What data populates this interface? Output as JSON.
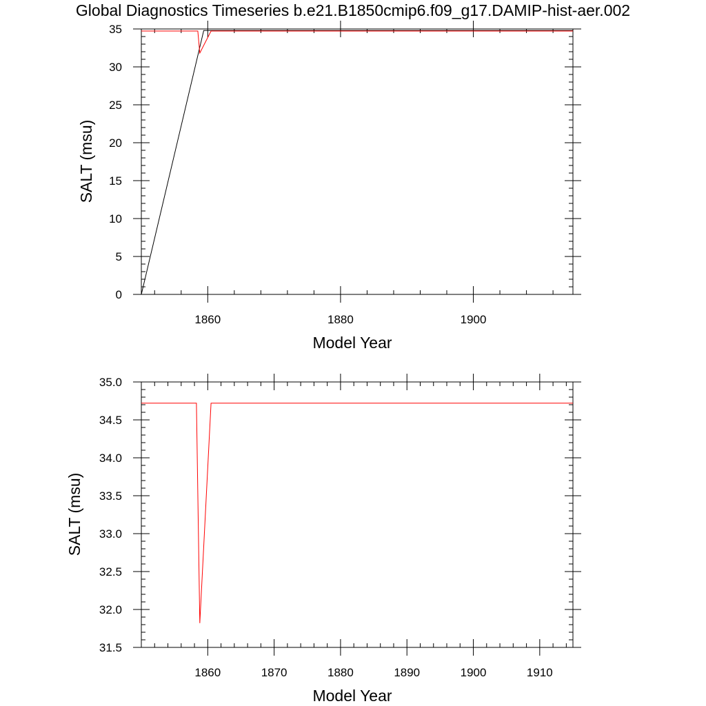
{
  "figure": {
    "title": "Global Diagnostics Timeseries b.e21.B1850cmip6.f09_g17.DAMIP-hist-aer.002"
  },
  "colors": {
    "black_series": "#000000",
    "red_series": "#ff0000"
  },
  "chart_data": [
    {
      "type": "line",
      "xlabel": "Model Year",
      "ylabel": "SALT (msu)",
      "xlim": [
        1850,
        1915
      ],
      "ylim": [
        0,
        35
      ],
      "x_ticks": [
        1860,
        1880,
        1900
      ],
      "x_tick_labels": [
        "1860",
        "1880",
        "1900"
      ],
      "x_minor_step": 4,
      "y_ticks": [
        0,
        5,
        10,
        15,
        20,
        25,
        30,
        35
      ],
      "y_tick_labels": [
        "0",
        "5",
        "10",
        "15",
        "20",
        "25",
        "30",
        "35"
      ],
      "y_minor_step": 1,
      "grid": false,
      "series": [
        {
          "color": "#000000",
          "x": [
            1850,
            1859.4,
            1915
          ],
          "y": [
            0,
            34.8,
            34.8
          ]
        },
        {
          "color": "#ff0000",
          "x": [
            1850,
            1858.5,
            1858.8,
            1860.5,
            1915
          ],
          "y": [
            34.73,
            34.73,
            31.82,
            34.73,
            34.73
          ]
        }
      ]
    },
    {
      "type": "line",
      "xlabel": "Model Year",
      "ylabel": "SALT (msu)",
      "xlim": [
        1850,
        1915
      ],
      "ylim": [
        31.5,
        35.0
      ],
      "x_ticks": [
        1860,
        1870,
        1880,
        1890,
        1900,
        1910
      ],
      "x_tick_labels": [
        "1860",
        "1870",
        "1880",
        "1890",
        "1900",
        "1910"
      ],
      "x_minor_step": 2,
      "y_ticks": [
        31.5,
        32.0,
        32.5,
        33.0,
        33.5,
        34.0,
        34.5,
        35.0
      ],
      "y_tick_labels": [
        "31.5",
        "32.0",
        "32.5",
        "33.0",
        "33.5",
        "34.0",
        "34.5",
        "35.0"
      ],
      "y_minor_step": 0.1,
      "grid": false,
      "series": [
        {
          "color": "#ff0000",
          "x": [
            1850,
            1858.3,
            1858.8,
            1860.5,
            1915
          ],
          "y": [
            34.72,
            34.72,
            31.82,
            34.72,
            34.72
          ]
        }
      ]
    }
  ]
}
